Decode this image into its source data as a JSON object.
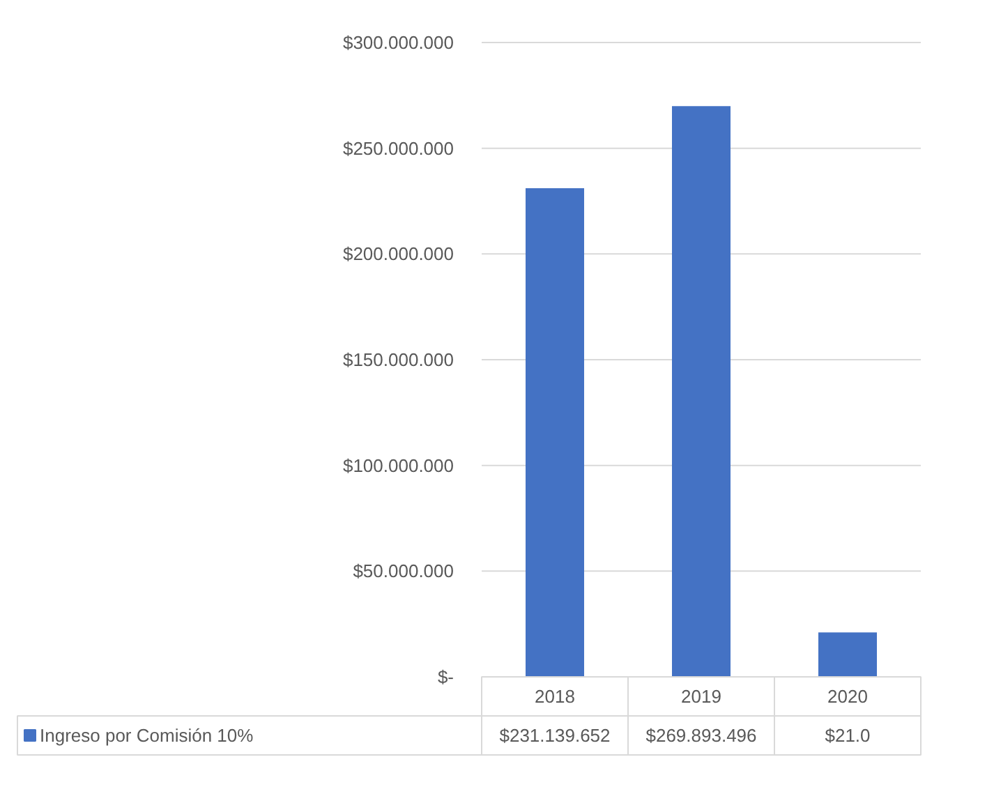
{
  "chart_data": {
    "type": "bar",
    "categories": [
      "2018",
      "2019",
      "2020"
    ],
    "series": [
      {
        "name": "Ingreso por Comisión 10%",
        "color": "#4472c4",
        "values": [
          231139652,
          269893496,
          21000000
        ]
      }
    ],
    "value_labels": [
      "$231.139.652",
      "$269.893.496",
      "$21.0"
    ],
    "ylim": [
      0,
      300000000
    ],
    "yticks": [
      {
        "value": 0,
        "label": "$-"
      },
      {
        "value": 50000000,
        "label": "$50.000.000"
      },
      {
        "value": 100000000,
        "label": "$100.000.000"
      },
      {
        "value": 150000000,
        "label": "$150.000.000"
      },
      {
        "value": 200000000,
        "label": "$200.000.000"
      },
      {
        "value": 250000000,
        "label": "$250.000.000"
      },
      {
        "value": 300000000,
        "label": "$300.000.000"
      }
    ],
    "grid": "y",
    "legend": "bottom"
  }
}
